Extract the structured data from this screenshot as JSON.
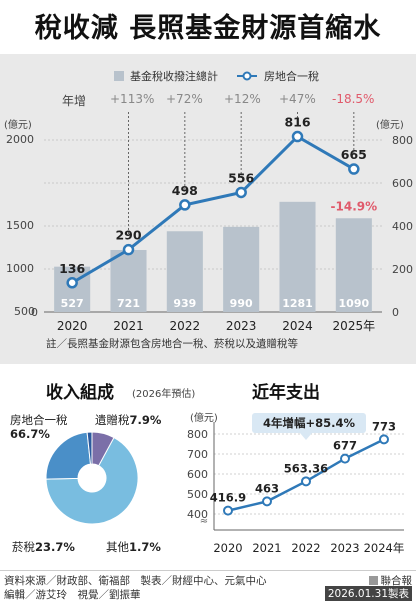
{
  "title": "稅收減 長照基金財源首縮水",
  "legend": {
    "bar_label": "基金稅收撥注總計",
    "line_label": "房地合一稅"
  },
  "growth_label": "年增",
  "line_growth": [
    "+113%",
    "+72%",
    "+12%",
    "+47%",
    "-18.5%"
  ],
  "bar_growth_2025": "-14.9%",
  "left_unit": "(億元)",
  "right_unit": "(億元)",
  "note": "註／長照基金財源包含房地合一稅、菸稅以及遺贈稅等",
  "colors": {
    "bar": "#b8c2cc",
    "line": "#2f79b8",
    "negative": "#e05a6b",
    "pie_light": "#79bde0",
    "pie_mid": "#4a8fc8",
    "pie_dark": "#2b5a9e",
    "pie_purple": "#7b6fa8"
  },
  "chart_data": [
    {
      "type": "bar+line",
      "categories": [
        "2020",
        "2021",
        "2022",
        "2023",
        "2024",
        "2025年"
      ],
      "series": [
        {
          "name": "基金稅收撥注總計",
          "type": "bar",
          "axis": "left",
          "values": [
            527,
            721,
            939,
            990,
            1281,
            1090
          ]
        },
        {
          "name": "房地合一稅",
          "type": "line",
          "axis": "right",
          "values": [
            136,
            290,
            498,
            556,
            816,
            665
          ]
        }
      ],
      "y_left": {
        "ticks": [
          0,
          500,
          1000,
          1500,
          2000
        ],
        "ylim": [
          0,
          2000
        ]
      },
      "y_right": {
        "ticks": [
          0,
          200,
          400,
          600,
          800
        ],
        "ylim": [
          0,
          800
        ]
      },
      "grid": true
    },
    {
      "type": "pie",
      "title": "收入組成",
      "subtitle": "(2026年預估)",
      "labels": [
        "房地合一稅",
        "菸稅",
        "其他",
        "遺贈稅"
      ],
      "values": [
        66.7,
        23.7,
        1.7,
        7.9
      ],
      "display": [
        "66.7%",
        "23.7%",
        "1.7%",
        "7.9%"
      ]
    },
    {
      "type": "line",
      "title": "近年支出",
      "unit": "(億元)",
      "annotation": "4年增幅+85.4%",
      "categories": [
        "2020",
        "2021",
        "2022",
        "2023",
        "2024年"
      ],
      "values": [
        416.9,
        463,
        563.36,
        677,
        773
      ],
      "value_labels": [
        "416.9",
        "463",
        "563.36",
        "677",
        "773"
      ],
      "y_ticks": [
        400,
        500,
        600,
        700,
        800
      ],
      "ylim": [
        380,
        820
      ],
      "grid": true
    }
  ],
  "footer": {
    "line1": "資料來源／財政部、衛福部　製表／財經中心、元氣中心",
    "line2": "編輯／游艾玲　視覺／劉振華",
    "source": "聯合報",
    "date": "2026.01.31製表"
  }
}
